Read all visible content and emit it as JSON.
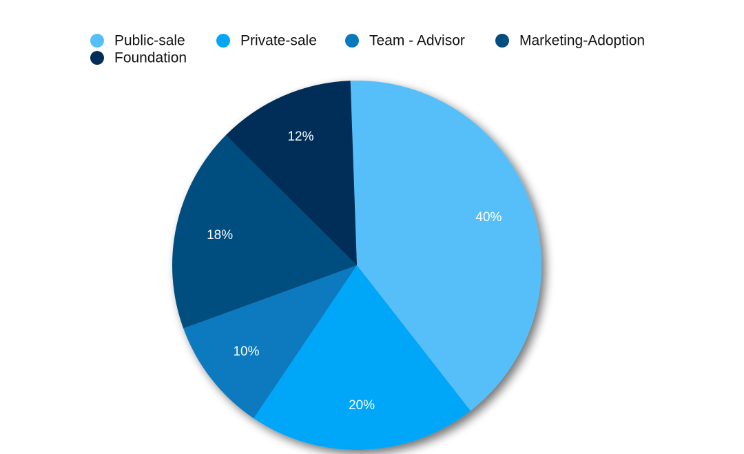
{
  "chart_data": {
    "type": "pie",
    "categories": [
      "Public-sale",
      "Private-sale",
      "Team - Advisor",
      "Marketing-Adoption",
      "Foundation"
    ],
    "values": [
      40,
      20,
      10,
      18,
      12
    ],
    "value_labels": [
      "40%",
      "20%",
      "10%",
      "18%",
      "12%"
    ],
    "colors": [
      "#56BFFA",
      "#05A6F8",
      "#0979BF",
      "#044D80",
      "#022D58"
    ],
    "start_angle_deg": -2,
    "direction": "clockwise",
    "legend": "top",
    "title": ""
  }
}
